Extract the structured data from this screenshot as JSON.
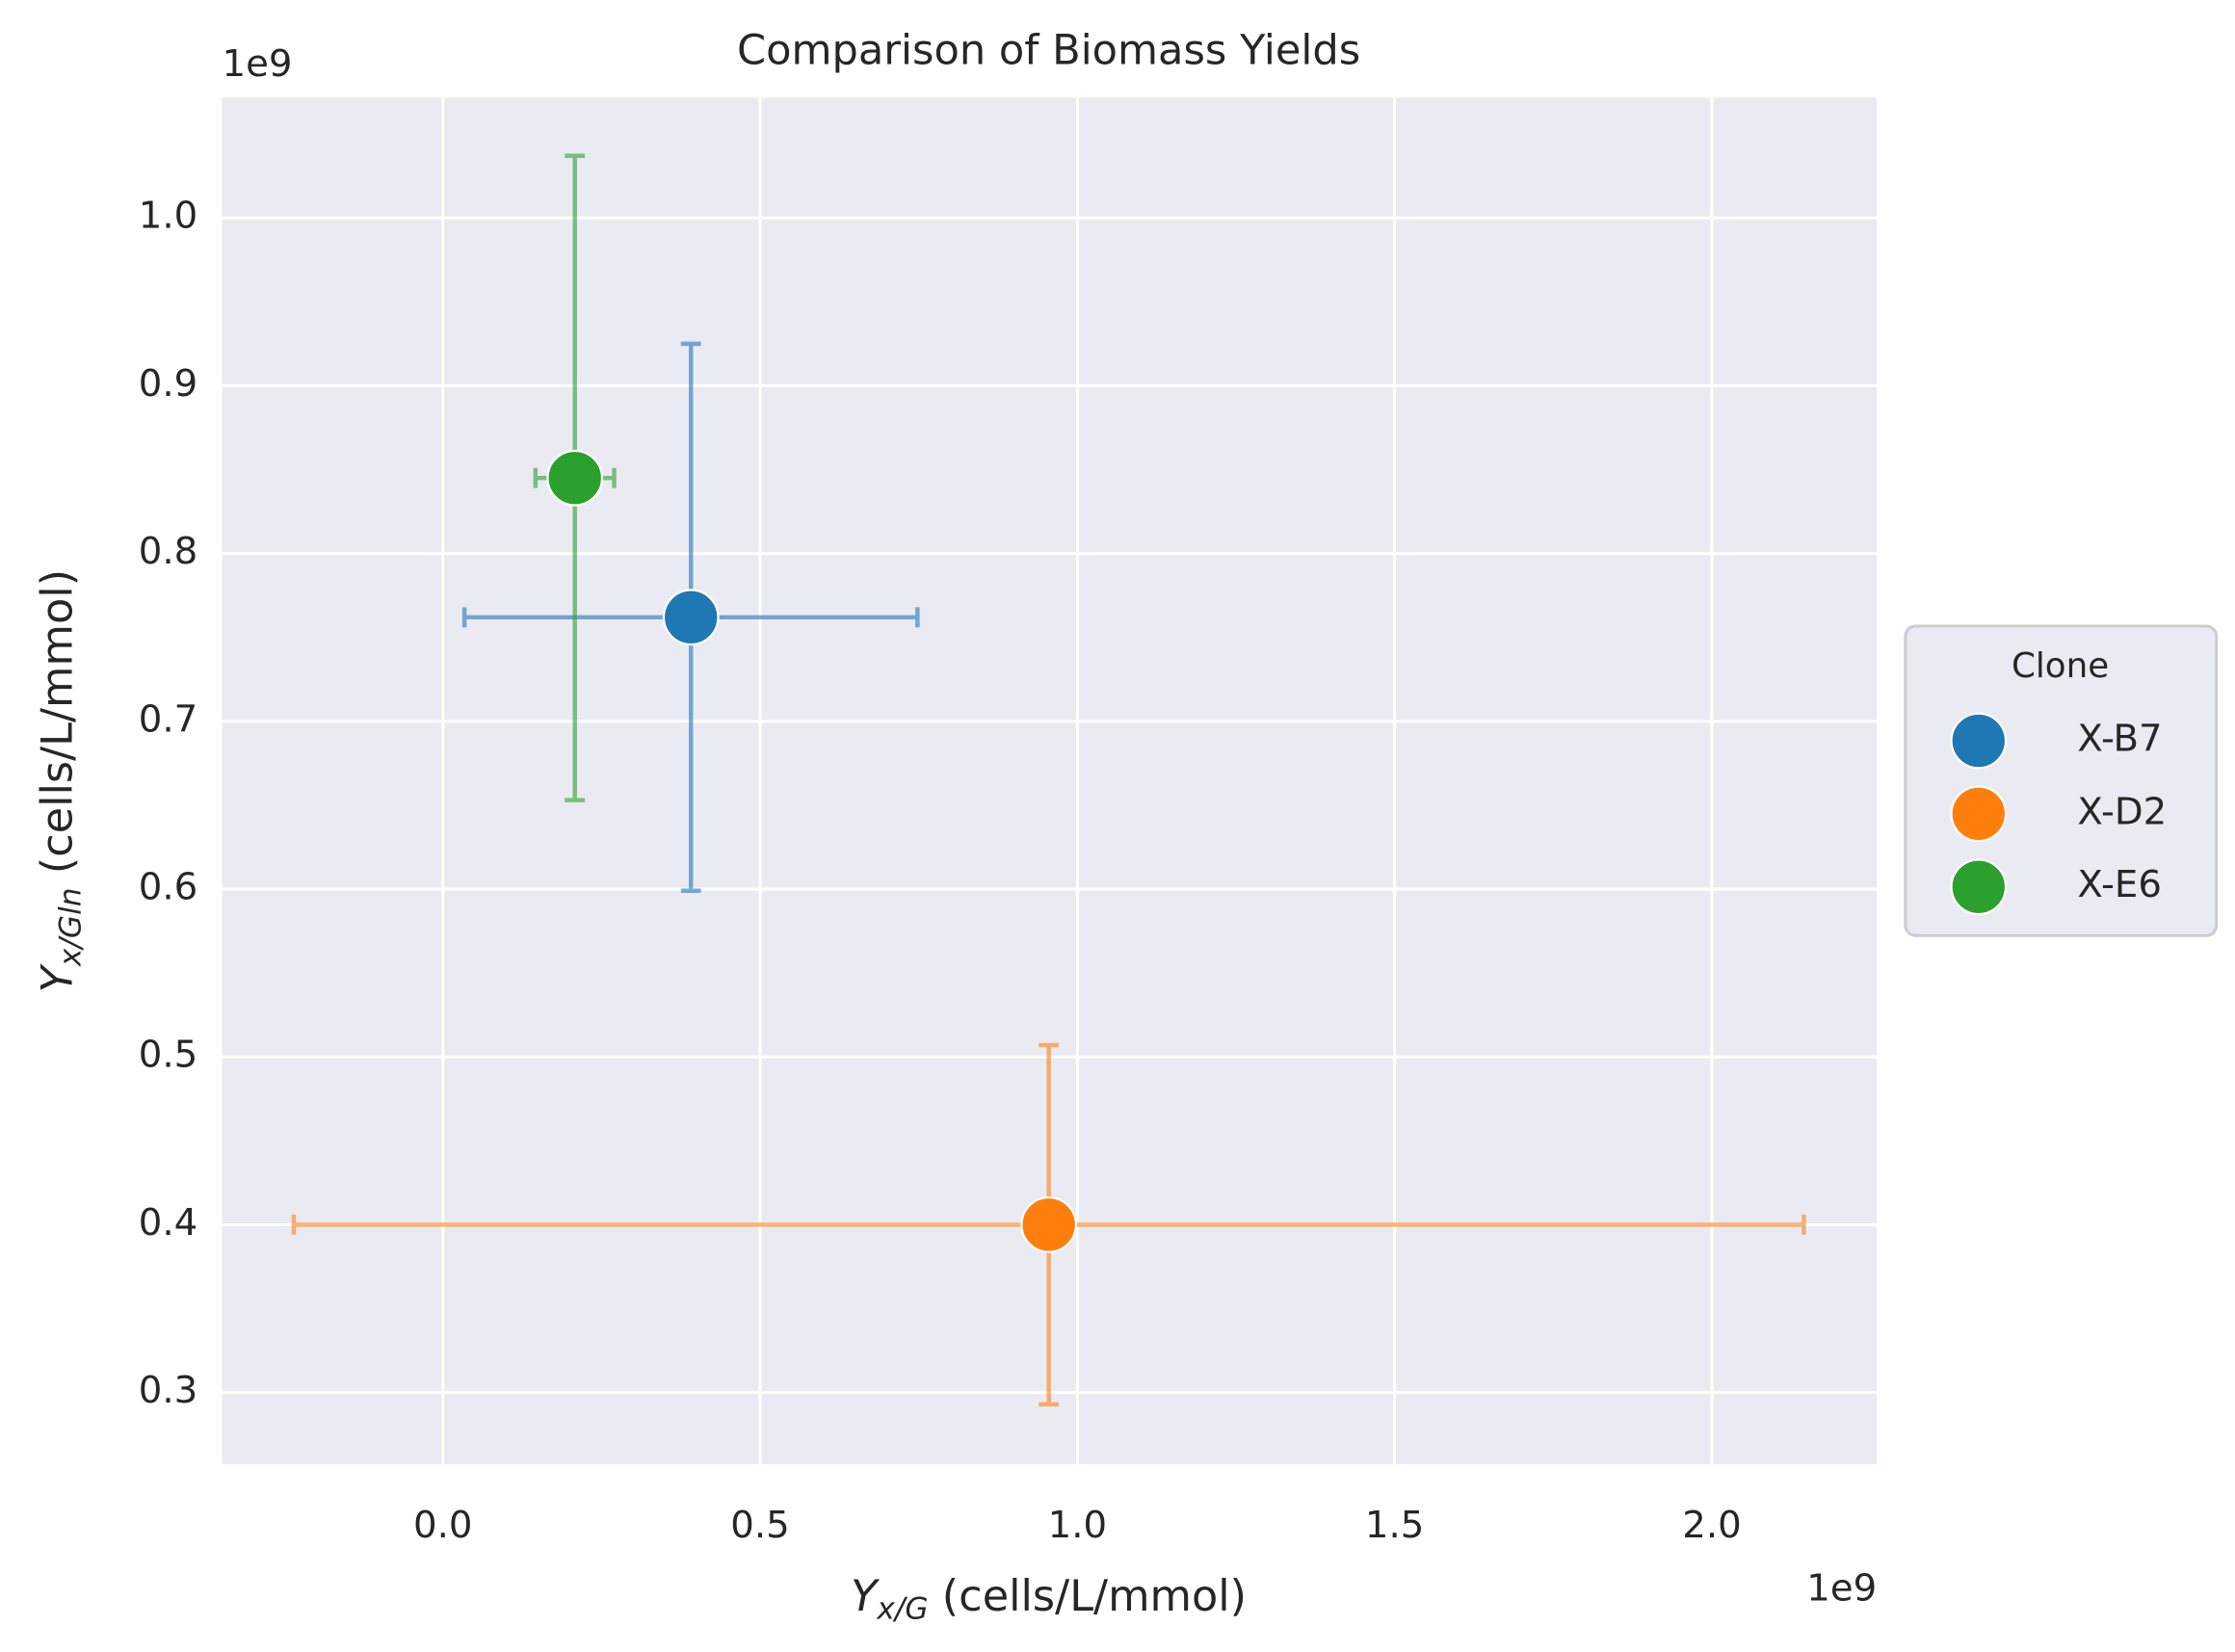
{
  "chart_data": {
    "type": "scatter",
    "title": "Comparison of Biomass Yields",
    "x_label": {
      "symbol": "Y",
      "subscript": "x/G",
      "rest": " (cells/L/mmol)"
    },
    "y_label": {
      "symbol": "Y",
      "subscript": "x/Gln",
      "rest": " (cells/L/mmol)"
    },
    "x_offset": "1e9",
    "y_offset": "1e9",
    "xlim": [
      -0.348,
      2.26
    ],
    "ylim": [
      0.2573,
      1.0717
    ],
    "xticks": [
      {
        "value": 0,
        "label": "0.0"
      },
      {
        "value": 0.5,
        "label": "0.5"
      },
      {
        "value": 1,
        "label": "1.0"
      },
      {
        "value": 1.5,
        "label": "1.5"
      },
      {
        "value": 2,
        "label": "2.0"
      }
    ],
    "yticks": [
      {
        "value": 0.3,
        "label": "0.3"
      },
      0.4,
      0.5,
      0.6,
      0.7,
      0.8,
      0.9,
      {
        "value": 1,
        "label": "1.0"
      }
    ],
    "grid": true,
    "legend_title": "Clone",
    "legend_position": "right",
    "series": [
      {
        "name": "X-B7",
        "color": "#1f77b4",
        "x": [
          0.391
        ],
        "values": [
          0.762
        ],
        "xerr": [
          0.357
        ],
        "yerr": [
          0.163
        ]
      },
      {
        "name": "X-D2",
        "color": "#ff7f0e",
        "x": [
          0.955
        ],
        "values": [
          0.4
        ],
        "xerr": [
          1.19
        ],
        "yerr": [
          0.107
        ]
      },
      {
        "name": "X-E6",
        "color": "#2ca02c",
        "x": [
          0.208
        ],
        "values": [
          0.845
        ],
        "xerr": [
          0.062
        ],
        "yerr": [
          0.192
        ]
      }
    ]
  }
}
